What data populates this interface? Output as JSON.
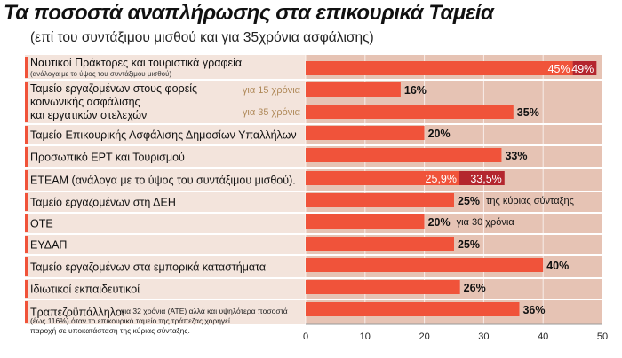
{
  "header": {
    "title": "Τα ποσοστά αναπλήρωσης στα επικουρικά Ταμεία",
    "subtitle": "(επί του συντάξιμου μισθού και για 35χρόνια ασφάλισης)"
  },
  "colors": {
    "bar": "#f0533a",
    "bar_dark": "#b4262e",
    "label_bg": "#f3e4dc",
    "value_bg": "#e6c3b4",
    "note_text": "#b08a5a",
    "grid": "#dddddd",
    "row_line": "#e89a8a"
  },
  "chart_data": {
    "type": "bar",
    "orientation": "horizontal",
    "xlim": [
      0,
      50
    ],
    "xticks": [
      0,
      10,
      20,
      30,
      40,
      50
    ],
    "rows": [
      {
        "label": "Ναυτικοί Πράκτορες και τουριστικά γραφεία",
        "sublabel": "(ανάλογα με το ύψος του συντάξιμου μισθού)",
        "bars": [
          {
            "start": 0,
            "value": 45,
            "label": "45%",
            "label_inside": true
          },
          {
            "start": 45,
            "value": 49,
            "label": "49%",
            "label_inside": true,
            "dark": true
          }
        ]
      },
      {
        "label_lines": [
          "Ταμείο εργαζομένων στους φορείς",
          "κοινωνικής ασφάλισης",
          "και εργατικών στελεχών"
        ],
        "bars": [
          {
            "start": 0,
            "value": 16,
            "label": "16%",
            "note": "για 15 χρόνια",
            "note_before": true
          },
          {
            "start": 0,
            "value": 35,
            "label": "35%",
            "note": "για 35 χρόνια",
            "note_before": true
          }
        ]
      },
      {
        "label": "Ταμείο Επικουρικής Ασφάλισης Δημοσίων Υπαλλήλων",
        "bars": [
          {
            "start": 0,
            "value": 20,
            "label": "20%"
          }
        ]
      },
      {
        "label": "Προσωπικό ΕΡΤ και Τουρισμού",
        "bars": [
          {
            "start": 0,
            "value": 33,
            "label": "33%"
          }
        ]
      },
      {
        "label": "ΕΤΕΑΜ  (ανάλογα με το ύψος του συντάξιμου μισθού).",
        "bars": [
          {
            "start": 0,
            "value": 25.9,
            "label": "25,9%",
            "label_inside": true
          },
          {
            "start": 25.9,
            "value": 33.5,
            "label": "33,5%",
            "label_inside": true,
            "dark": true
          }
        ]
      },
      {
        "label": "Ταμείο εργαζομένων στη ΔΕΗ",
        "bars": [
          {
            "start": 0,
            "value": 25,
            "label": "25%",
            "note": "της κύριας σύνταξης"
          }
        ]
      },
      {
        "label": "ΟΤΕ",
        "bars": [
          {
            "start": 0,
            "value": 20,
            "label": "20%",
            "note": "για 30 χρόνια"
          }
        ]
      },
      {
        "label": "ΕΥΔΑΠ",
        "bars": [
          {
            "start": 0,
            "value": 25,
            "label": "25%"
          }
        ]
      },
      {
        "label": "Ταμείο εργαζομένων στα εμπορικά καταστήματα",
        "bars": [
          {
            "start": 0,
            "value": 40,
            "label": "40%"
          }
        ]
      },
      {
        "label": "Ιδιωτικοί εκπαιδευτικοί",
        "bars": [
          {
            "start": 0,
            "value": 26,
            "label": "26%"
          }
        ]
      },
      {
        "label": "Τραπεζοϋπάλληλοι",
        "note_lines": [
          "για 32 χρόνια (ΑΤΕ) αλλά και υψηλότερα ποσοστά",
          "(έως 116%) όταν το επικουρικό ταμείο της τράπεζας χορηγεί",
          "παροχή σε υποκατάσταση της κύριας σύνταξης."
        ],
        "bars": [
          {
            "start": 0,
            "value": 36,
            "label": "36%"
          }
        ]
      }
    ]
  }
}
